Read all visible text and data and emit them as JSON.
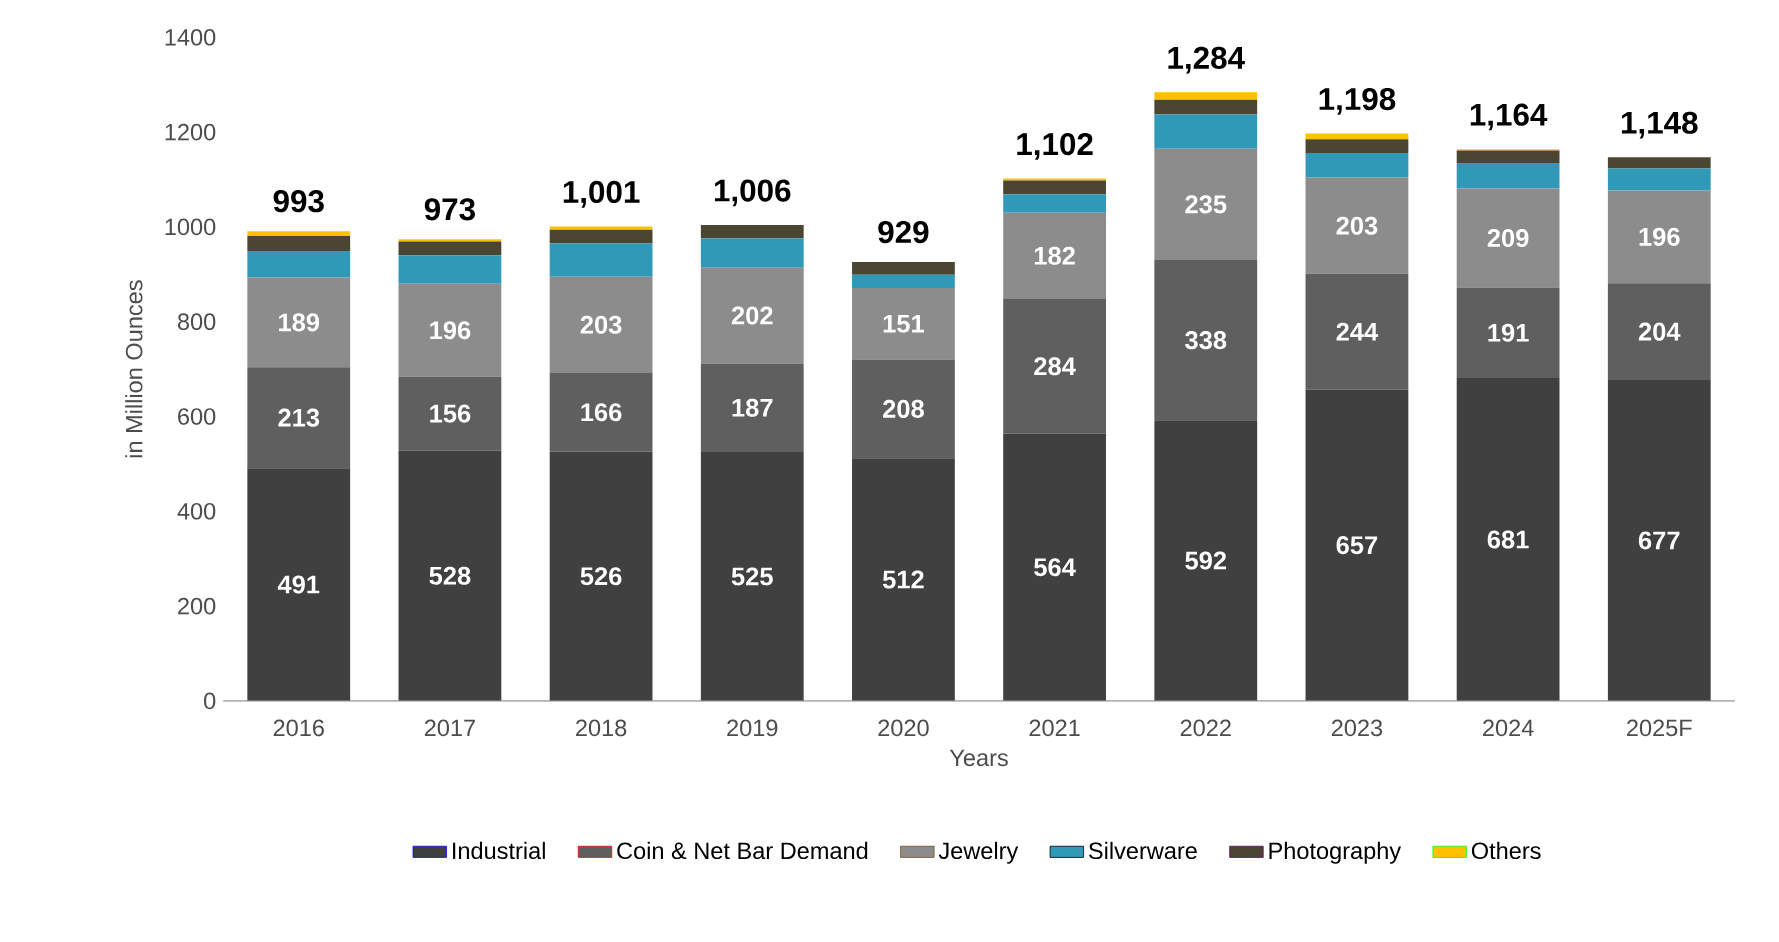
{
  "chart_data": {
    "type": "bar",
    "stacked": true,
    "xlabel": "Years",
    "ylabel": "in Million Ounces",
    "categories": [
      "2016",
      "2017",
      "2018",
      "2019",
      "2020",
      "2021",
      "2022",
      "2023",
      "2024",
      "2025F"
    ],
    "series": [
      {
        "name": "Industrial",
        "color": "#404040",
        "values": [
          491,
          528,
          526,
          525,
          512,
          564,
          592,
          657,
          681,
          677
        ],
        "value_labels": [
          "491",
          "528",
          "526",
          "525",
          "512",
          "564",
          "592",
          "657",
          "681",
          "677"
        ]
      },
      {
        "name": "Coin & Net Bar Demand",
        "color": "#5f5f5f",
        "values": [
          213,
          156,
          166,
          187,
          208,
          284,
          338,
          244,
          191,
          204
        ],
        "value_labels": [
          "213",
          "156",
          "166",
          "187",
          "208",
          "284",
          "338",
          "244",
          "191",
          "204"
        ]
      },
      {
        "name": "Jewelry",
        "color": "#8c8c8c",
        "values": [
          189,
          196,
          203,
          202,
          151,
          182,
          235,
          203,
          209,
          196
        ],
        "value_labels": [
          "189",
          "196",
          "203",
          "202",
          "151",
          "182",
          "235",
          "203",
          "209",
          "196"
        ]
      },
      {
        "name": "Silverware",
        "color": "#3199b8",
        "values": [
          56,
          60,
          70,
          62,
          28,
          39,
          72,
          52,
          54,
          46
        ]
      },
      {
        "name": "Photography",
        "color": "#4a4632",
        "values": [
          32,
          29,
          29,
          28,
          27,
          29,
          31,
          29,
          26,
          24
        ]
      },
      {
        "name": "Others",
        "color": "#ffc000",
        "values": [
          10,
          5,
          7,
          0,
          0,
          4,
          16,
          12,
          3,
          0
        ]
      }
    ],
    "totals": [
      "993",
      "973",
      "1,001",
      "1,006",
      "929",
      "1,102",
      "1,284",
      "1,198",
      "1,164",
      "1,148"
    ],
    "ylim": [
      0,
      1400
    ],
    "yticks": [
      0,
      200,
      400,
      600,
      800,
      1000,
      1200,
      1400
    ],
    "legend": "bottom"
  }
}
